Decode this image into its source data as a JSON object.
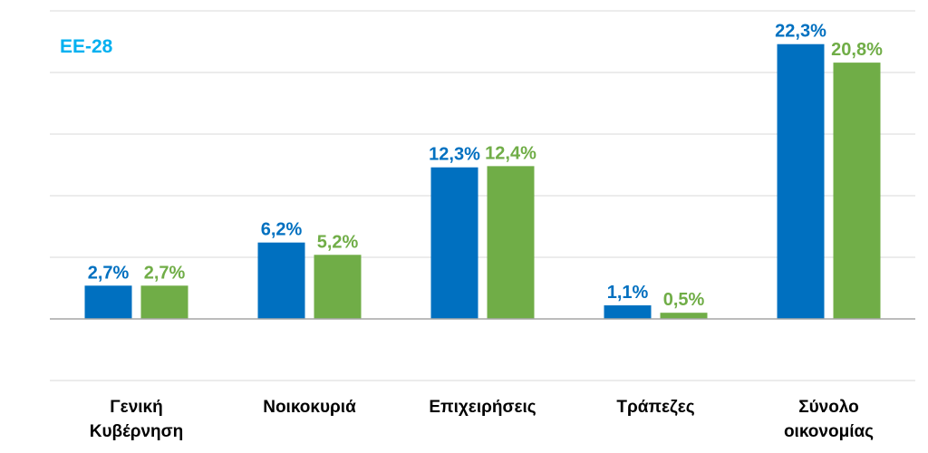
{
  "chart_data": {
    "type": "bar",
    "inset_label": "ΕΕ-28",
    "categories": [
      "Γενική\nΚυβέρνηση",
      "Νοικοκυριά",
      "Επιχειρήσεις",
      "Τράπεζες",
      "Σύνολο\nοικονομίας"
    ],
    "series": [
      {
        "values": [
          2.7,
          6.2,
          12.3,
          1.1,
          22.3
        ],
        "labels": [
          "2,7%",
          "6,2%",
          "12,3%",
          "1,1%",
          "22,3%"
        ]
      },
      {
        "values": [
          2.7,
          5.2,
          12.4,
          0.5,
          20.8
        ],
        "labels": [
          "2,7%",
          "5,2%",
          "12,4%",
          "0,5%",
          "20,8%"
        ]
      }
    ],
    "ylim": [
      -5,
      25
    ],
    "grid": true,
    "legend": "none"
  },
  "colors": {
    "series_1": "#0070c0",
    "series_2": "#70ad47",
    "inset_label": "#00b0f0",
    "gridline": "#d9d9d9",
    "axis": "#a6a6a6"
  }
}
